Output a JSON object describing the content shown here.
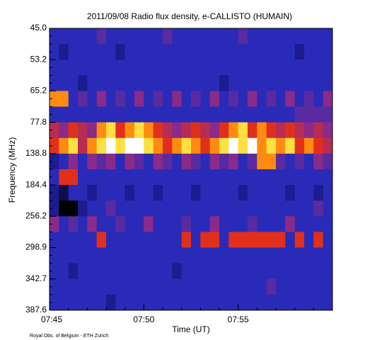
{
  "chart_data": {
    "type": "heatmap",
    "title": "2011/09/08  Radio flux density, e-CALLISTO (HUMAIN)",
    "y_label": "Frequency (MHz)",
    "x_label": "Time (UT)",
    "credit": "Royal Obs. of Belgium - ETH Zurich",
    "y_labels": [
      "45.0",
      "53.2",
      "65.2",
      "77.8",
      "138.8",
      "184.4",
      "256.2",
      "298.9",
      "342.7",
      "387.6"
    ],
    "x_labels": [
      "07:45",
      "07:50",
      "07:55"
    ],
    "colorscale": [
      [
        0,
        "#000000"
      ],
      [
        2,
        "#1c1c90"
      ],
      [
        3,
        "#2a2ab8"
      ],
      [
        5,
        "#8a2a8a"
      ],
      [
        7,
        "#e0301c"
      ],
      [
        8,
        "#ff8c10"
      ],
      [
        9,
        "#ffe040"
      ],
      [
        10,
        "#ffffff"
      ]
    ],
    "z": [
      [
        3,
        3,
        3,
        3,
        3,
        4,
        3,
        3,
        3,
        3,
        3,
        3,
        4,
        3,
        3,
        3,
        3,
        3,
        3,
        3,
        4,
        3,
        3,
        3,
        3,
        3,
        3,
        3,
        3,
        3
      ],
      [
        3,
        2,
        3,
        3,
        3,
        3,
        3,
        2,
        3,
        3,
        3,
        3,
        3,
        3,
        3,
        3,
        3,
        3,
        3,
        3,
        3,
        3,
        3,
        3,
        3,
        3,
        2,
        3,
        3,
        3
      ],
      [
        3,
        3,
        3,
        3,
        3,
        3,
        3,
        3,
        3,
        3,
        3,
        3,
        3,
        3,
        3,
        3,
        3,
        3,
        3,
        3,
        3,
        3,
        3,
        3,
        3,
        3,
        3,
        3,
        3,
        3
      ],
      [
        3,
        3,
        3,
        2,
        3,
        3,
        3,
        3,
        3,
        3,
        3,
        3,
        3,
        3,
        3,
        3,
        3,
        3,
        2,
        3,
        3,
        3,
        3,
        3,
        3,
        3,
        3,
        3,
        3,
        3
      ],
      [
        8,
        8,
        3,
        4,
        3,
        5,
        3,
        4,
        3,
        5,
        3,
        4,
        3,
        5,
        3,
        4,
        3,
        5,
        3,
        4,
        3,
        5,
        3,
        4,
        3,
        5,
        3,
        4,
        3,
        5
      ],
      [
        3,
        3,
        3,
        3,
        3,
        3,
        3,
        3,
        3,
        3,
        3,
        3,
        3,
        3,
        3,
        3,
        3,
        3,
        3,
        3,
        3,
        3,
        3,
        3,
        3,
        3,
        4,
        4,
        4,
        4
      ],
      [
        6,
        5,
        7,
        6,
        5,
        8,
        9,
        7,
        8,
        9,
        8,
        7,
        6,
        5,
        6,
        7,
        6,
        5,
        7,
        8,
        9,
        7,
        8,
        7,
        6,
        7,
        6,
        5,
        6,
        5
      ],
      [
        7,
        8,
        9,
        6,
        8,
        9,
        10,
        9,
        10,
        10,
        9,
        8,
        7,
        8,
        9,
        8,
        7,
        8,
        9,
        10,
        9,
        10,
        8,
        9,
        8,
        9,
        7,
        8,
        7,
        6
      ],
      [
        2,
        3,
        5,
        3,
        5,
        4,
        5,
        3,
        5,
        4,
        3,
        5,
        4,
        3,
        5,
        4,
        3,
        5,
        4,
        5,
        3,
        4,
        8,
        8,
        4,
        3,
        4,
        3,
        5,
        4
      ],
      [
        3,
        7,
        7,
        3,
        3,
        3,
        3,
        3,
        3,
        3,
        3,
        3,
        3,
        3,
        3,
        3,
        3,
        3,
        3,
        3,
        3,
        3,
        3,
        3,
        3,
        3,
        3,
        3,
        3,
        3
      ],
      [
        2,
        1,
        3,
        3,
        2,
        3,
        3,
        3,
        2,
        3,
        3,
        2,
        3,
        3,
        3,
        2,
        3,
        3,
        3,
        3,
        2,
        3,
        3,
        3,
        3,
        2,
        3,
        3,
        2,
        3
      ],
      [
        2,
        0,
        0,
        2,
        3,
        3,
        4,
        3,
        3,
        3,
        3,
        3,
        3,
        3,
        3,
        3,
        3,
        3,
        3,
        3,
        3,
        3,
        3,
        3,
        3,
        3,
        3,
        3,
        4,
        3
      ],
      [
        5,
        3,
        4,
        3,
        5,
        3,
        3,
        4,
        3,
        3,
        5,
        3,
        3,
        3,
        4,
        3,
        3,
        5,
        3,
        3,
        3,
        4,
        3,
        3,
        3,
        5,
        3,
        3,
        3,
        3
      ],
      [
        3,
        3,
        3,
        3,
        3,
        7,
        3,
        3,
        3,
        3,
        3,
        3,
        3,
        3,
        7,
        3,
        7,
        7,
        3,
        7,
        7,
        7,
        7,
        7,
        7,
        3,
        7,
        3,
        7,
        3
      ],
      [
        3,
        3,
        3,
        3,
        3,
        3,
        3,
        3,
        3,
        3,
        3,
        3,
        3,
        3,
        3,
        3,
        3,
        3,
        3,
        3,
        3,
        3,
        3,
        3,
        3,
        3,
        3,
        3,
        3,
        3
      ],
      [
        3,
        3,
        2,
        3,
        3,
        3,
        3,
        3,
        3,
        3,
        3,
        3,
        3,
        2,
        3,
        3,
        3,
        3,
        3,
        3,
        3,
        3,
        3,
        3,
        3,
        3,
        3,
        3,
        3,
        3
      ],
      [
        3,
        3,
        3,
        3,
        3,
        3,
        3,
        3,
        3,
        3,
        3,
        3,
        3,
        3,
        3,
        3,
        3,
        3,
        3,
        3,
        3,
        3,
        3,
        4,
        3,
        3,
        3,
        3,
        3,
        3
      ],
      [
        3,
        3,
        3,
        3,
        3,
        3,
        2,
        3,
        3,
        3,
        3,
        3,
        3,
        3,
        3,
        3,
        3,
        3,
        3,
        3,
        3,
        3,
        3,
        3,
        3,
        3,
        3,
        3,
        3,
        3
      ]
    ]
  }
}
